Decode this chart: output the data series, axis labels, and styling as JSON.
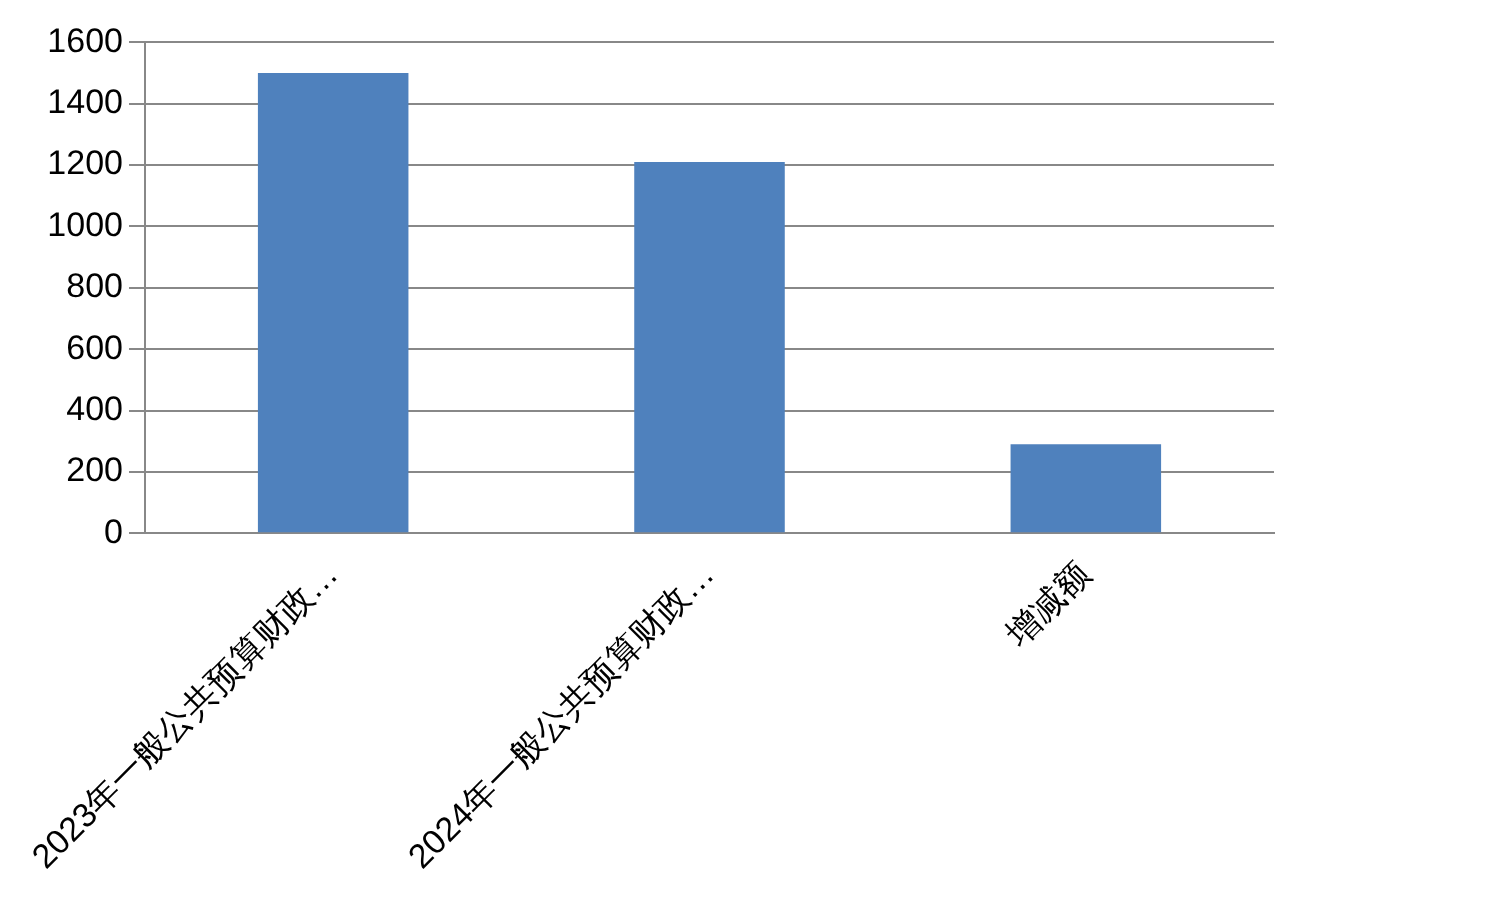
{
  "chart_data": {
    "type": "bar",
    "categories": [
      "2023年一般公共预算财政…",
      "2024年一般公共预算财政…",
      "增减额"
    ],
    "values": [
      1500,
      1210,
      290
    ],
    "color": "#4f81bd",
    "ylim": [
      0,
      1600
    ],
    "yticks": [
      0,
      200,
      400,
      600,
      800,
      1000,
      1200,
      1400,
      1600
    ],
    "grid": "y",
    "legend": false
  }
}
